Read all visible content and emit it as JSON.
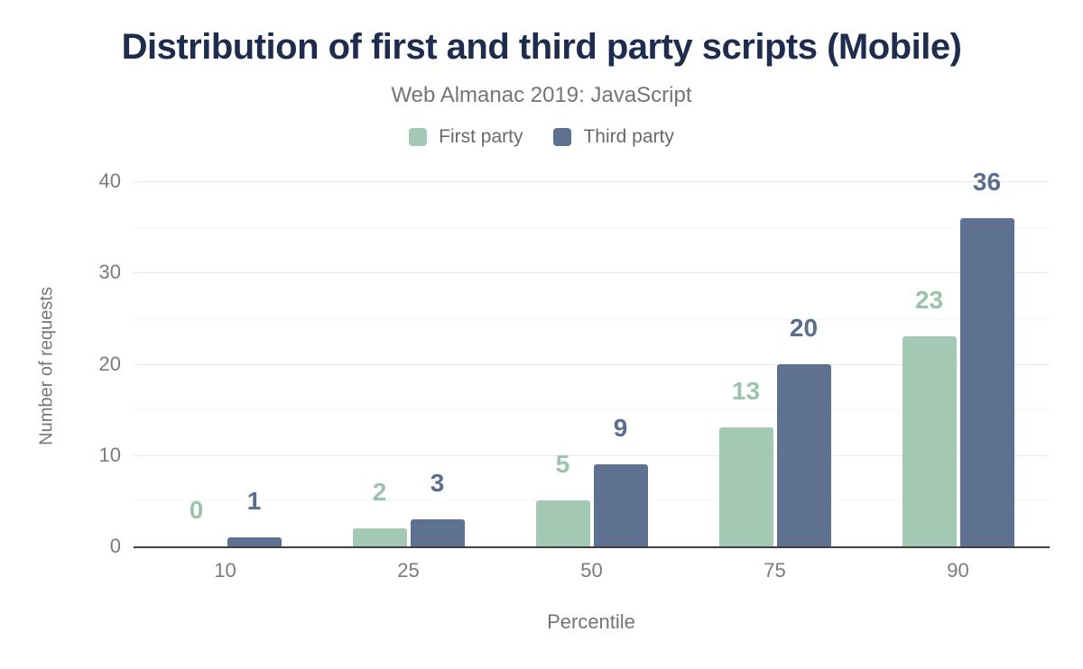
{
  "chart": {
    "title": "Distribution of first and third party scripts (Mobile)",
    "subtitle": "Web Almanac 2019: JavaScript"
  },
  "chart_data": {
    "type": "bar",
    "title": "Distribution of first and third party scripts (Mobile)",
    "subtitle": "Web Almanac 2019: JavaScript",
    "categories": [
      "10",
      "25",
      "50",
      "75",
      "90"
    ],
    "series": [
      {
        "name": "First party",
        "color": "#a3c8b4",
        "label_color": "#9cc3ae",
        "values": [
          0,
          2,
          5,
          13,
          23
        ]
      },
      {
        "name": "Third party",
        "color": "#5e7190",
        "label_color": "#5a6e8f",
        "values": [
          1,
          3,
          9,
          20,
          36
        ]
      }
    ],
    "xlabel": "Percentile",
    "ylabel": "Number of requests",
    "ylim": [
      0,
      40
    ],
    "yticks": [
      0,
      10,
      20,
      30,
      40
    ],
    "ytick_step": 10,
    "minor_gridline_step": 5,
    "grid": true,
    "legend_position": "top",
    "colors": {
      "title": "#1e2c4e",
      "subtitle_text": "#757575",
      "axis_text": "#7b7b7b",
      "axis_line": "#404040",
      "grid_major": "#e9e9e9",
      "grid_minor": "#f5f4f2",
      "background": "#ffffff"
    }
  }
}
